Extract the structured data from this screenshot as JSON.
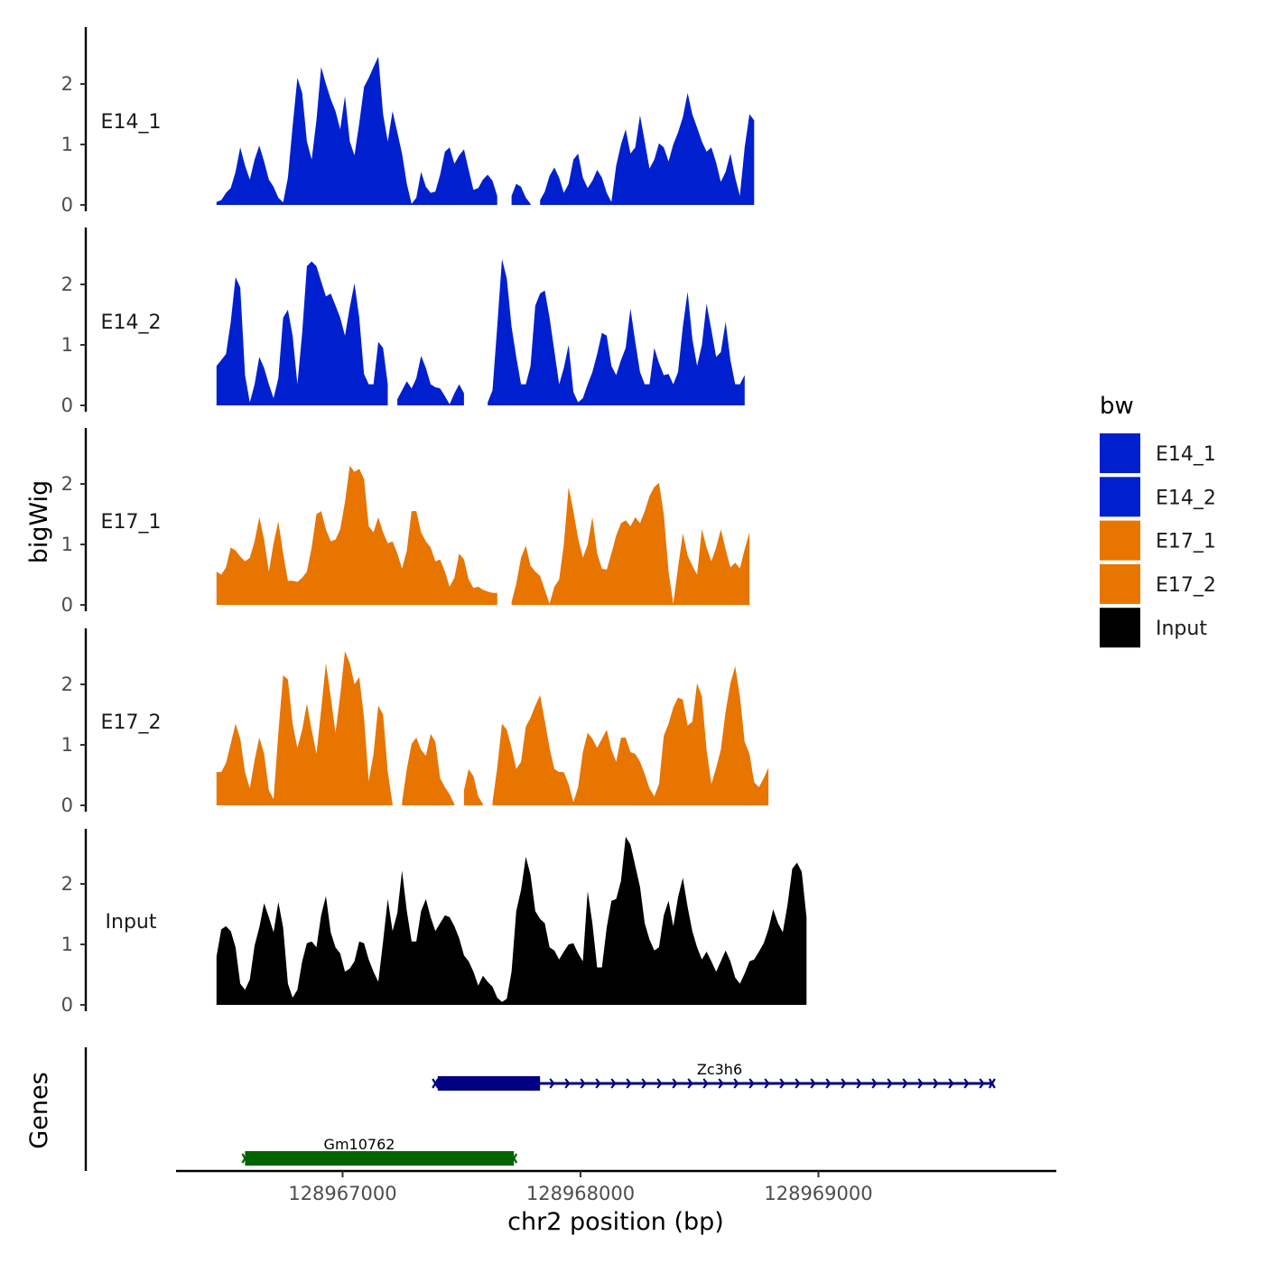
{
  "chart_data": {
    "type": "area",
    "xlabel": "chr2 position (bp)",
    "ylabel": "bigWig",
    "genes_label": "Genes",
    "xlim": [
      128966300,
      128970000
    ],
    "ylim": [
      0,
      2.9
    ],
    "y_ticks": [
      0,
      1,
      2
    ],
    "x_ticks": [
      128967000,
      128968000,
      128969000
    ],
    "x_tick_labels": [
      "128967000",
      "128968000",
      "128969000"
    ],
    "legend": {
      "title": "bw",
      "items": [
        {
          "label": "E14_1",
          "color": "#0020D0"
        },
        {
          "label": "E14_2",
          "color": "#0020D0"
        },
        {
          "label": "E17_1",
          "color": "#E87500"
        },
        {
          "label": "E17_2",
          "color": "#E87500"
        },
        {
          "label": "Input",
          "color": "#000000"
        }
      ]
    },
    "series": [
      {
        "name": "E14_1",
        "color": "#0020D0",
        "x_start": 128966470,
        "x_step": 20,
        "values": [
          0.05,
          0.08,
          0.2,
          0.28,
          0.55,
          0.95,
          0.65,
          0.42,
          0.75,
          0.98,
          0.72,
          0.42,
          0.3,
          0.12,
          0.04,
          0.45,
          1.3,
          2.1,
          1.85,
          1.05,
          0.75,
          1.4,
          2.28,
          2.0,
          1.75,
          1.55,
          1.25,
          1.8,
          1.05,
          0.82,
          1.35,
          1.95,
          2.1,
          2.28,
          2.45,
          1.5,
          1.05,
          1.55,
          1.2,
          0.85,
          0.35,
          0.02,
          0.12,
          0.55,
          0.3,
          0.2,
          0.22,
          0.5,
          0.88,
          0.95,
          0.68,
          0.82,
          0.92,
          0.58,
          0.25,
          0.28,
          0.42,
          0.5,
          0.4,
          0.15,
          null,
          null,
          0.15,
          0.35,
          0.3,
          0.12,
          0.02,
          null,
          0.08,
          0.22,
          0.48,
          0.62,
          0.45,
          0.2,
          0.35,
          0.75,
          0.85,
          0.45,
          0.28,
          0.4,
          0.58,
          0.45,
          0.2,
          0.05,
          0.65,
          1.0,
          1.25,
          0.85,
          0.95,
          1.48,
          1.05,
          0.6,
          0.75,
          1.02,
          0.95,
          0.72,
          1.0,
          1.2,
          1.45,
          1.85,
          1.5,
          1.28,
          1.05,
          0.88,
          0.95,
          0.7,
          0.38,
          0.55,
          0.85,
          0.45,
          0.15,
          0.95,
          1.5,
          1.4
        ]
      },
      {
        "name": "E14_2",
        "color": "#0020D0",
        "x_start": 128966470,
        "x_step": 20,
        "values": [
          0.65,
          0.75,
          0.85,
          1.38,
          2.12,
          1.95,
          0.5,
          0.05,
          0.35,
          0.8,
          0.62,
          0.35,
          0.12,
          0.45,
          1.45,
          1.58,
          1.15,
          0.35,
          1.2,
          2.3,
          2.38,
          2.3,
          2.05,
          1.8,
          1.85,
          1.65,
          1.45,
          1.15,
          1.62,
          2.02,
          1.45,
          0.52,
          0.35,
          0.35,
          1.05,
          0.95,
          0.35,
          null,
          0.1,
          0.25,
          0.4,
          0.28,
          0.45,
          0.82,
          0.62,
          0.35,
          0.3,
          0.28,
          0.15,
          0.02,
          0.2,
          0.35,
          0.2,
          null,
          null,
          null,
          null,
          0.05,
          0.25,
          1.3,
          2.42,
          2.1,
          1.3,
          0.8,
          0.35,
          0.35,
          0.65,
          1.65,
          1.85,
          1.9,
          1.45,
          0.9,
          0.35,
          0.62,
          1.0,
          0.22,
          0.05,
          0.12,
          0.35,
          0.55,
          0.85,
          1.2,
          1.15,
          0.65,
          0.5,
          0.75,
          0.95,
          1.6,
          1.05,
          0.55,
          0.35,
          0.35,
          0.95,
          0.7,
          0.5,
          0.52,
          0.35,
          0.55,
          1.3,
          1.88,
          1.1,
          0.65,
          1.0,
          1.68,
          1.25,
          0.8,
          0.88,
          1.38,
          0.75,
          0.35,
          0.35,
          0.5
        ]
      },
      {
        "name": "E17_1",
        "color": "#E87500",
        "x_start": 128966470,
        "x_step": 20,
        "values": [
          0.55,
          0.5,
          0.62,
          0.95,
          0.9,
          0.8,
          0.72,
          0.78,
          1.05,
          1.45,
          1.08,
          0.55,
          1.02,
          1.38,
          0.85,
          0.4,
          0.4,
          0.38,
          0.45,
          0.55,
          0.95,
          1.5,
          1.55,
          1.25,
          1.05,
          1.08,
          1.25,
          1.7,
          2.3,
          2.2,
          2.25,
          2.08,
          1.3,
          1.2,
          1.45,
          1.2,
          1.02,
          1.05,
          0.85,
          0.6,
          0.9,
          1.55,
          1.55,
          1.2,
          1.05,
          0.95,
          0.72,
          0.75,
          0.55,
          0.3,
          0.45,
          0.85,
          0.75,
          0.42,
          0.28,
          0.3,
          0.25,
          0.22,
          0.2,
          0.2,
          null,
          null,
          0.05,
          0.35,
          0.78,
          0.98,
          0.65,
          0.55,
          0.48,
          0.25,
          0.02,
          0.3,
          0.42,
          1.0,
          1.95,
          1.55,
          1.1,
          0.78,
          1.0,
          1.45,
          0.85,
          0.6,
          0.58,
          0.85,
          1.15,
          1.35,
          1.4,
          1.3,
          1.45,
          1.35,
          1.55,
          1.8,
          1.95,
          2.02,
          1.5,
          0.55,
          0.02,
          0.62,
          1.18,
          0.82,
          0.65,
          0.5,
          1.25,
          0.95,
          0.72,
          0.95,
          1.25,
          0.92,
          0.62,
          0.7,
          0.6,
          0.92,
          1.2
        ]
      },
      {
        "name": "E17_2",
        "color": "#E87500",
        "x_start": 128966470,
        "x_step": 20,
        "values": [
          0.55,
          0.55,
          0.7,
          1.02,
          1.35,
          1.1,
          0.55,
          0.28,
          0.75,
          1.12,
          0.85,
          0.25,
          0.1,
          1.2,
          2.15,
          2.08,
          1.35,
          0.95,
          1.25,
          1.68,
          1.25,
          0.85,
          1.58,
          2.35,
          1.8,
          1.2,
          1.82,
          2.55,
          2.35,
          2.0,
          2.12,
          1.45,
          0.4,
          0.85,
          1.65,
          1.5,
          0.55,
          0.02,
          null,
          0.05,
          0.6,
          1.02,
          1.12,
          0.92,
          0.82,
          1.18,
          1.05,
          0.45,
          0.3,
          0.18,
          0.02,
          null,
          0.25,
          0.6,
          0.48,
          0.15,
          0.02,
          null,
          0.05,
          0.62,
          1.35,
          1.25,
          0.95,
          0.6,
          0.72,
          1.3,
          1.45,
          1.65,
          1.82,
          1.4,
          0.95,
          0.6,
          0.55,
          0.55,
          0.35,
          0.05,
          0.3,
          0.88,
          1.2,
          1.1,
          0.95,
          1.1,
          1.25,
          0.92,
          0.72,
          1.12,
          1.12,
          0.88,
          0.85,
          0.72,
          0.52,
          0.28,
          0.15,
          0.35,
          1.15,
          1.35,
          1.62,
          1.78,
          1.75,
          1.32,
          1.38,
          2.02,
          1.8,
          0.92,
          0.35,
          0.62,
          0.92,
          1.55,
          2.02,
          2.3,
          1.8,
          1.05,
          0.85,
          0.38,
          0.3,
          0.45,
          0.62
        ]
      },
      {
        "name": "Input",
        "color": "#000000",
        "x_start": 128966470,
        "x_step": 20,
        "values": [
          0.8,
          1.25,
          1.3,
          1.22,
          0.95,
          0.35,
          0.25,
          0.42,
          0.98,
          1.28,
          1.68,
          1.45,
          1.2,
          1.7,
          1.28,
          0.35,
          0.12,
          0.25,
          0.72,
          1.02,
          1.05,
          0.95,
          1.48,
          1.8,
          1.2,
          0.95,
          0.85,
          0.55,
          0.6,
          0.72,
          1.05,
          1.02,
          0.75,
          0.55,
          0.38,
          1.05,
          1.75,
          1.22,
          1.52,
          2.22,
          1.55,
          1.05,
          1.05,
          1.55,
          1.75,
          1.45,
          1.22,
          1.35,
          1.48,
          1.45,
          1.3,
          1.1,
          0.82,
          0.72,
          0.55,
          0.32,
          0.48,
          0.38,
          0.3,
          0.12,
          0.05,
          0.1,
          0.55,
          1.55,
          1.9,
          2.45,
          2.15,
          1.55,
          1.42,
          1.35,
          0.95,
          0.9,
          0.75,
          0.88,
          1.0,
          1.02,
          0.85,
          0.72,
          1.88,
          1.35,
          0.62,
          0.62,
          1.28,
          1.72,
          1.75,
          2.05,
          2.78,
          2.65,
          2.3,
          1.95,
          1.35,
          1.08,
          0.9,
          0.95,
          1.48,
          1.72,
          1.3,
          1.78,
          2.1,
          1.62,
          1.22,
          0.95,
          0.75,
          0.88,
          0.72,
          0.55,
          0.72,
          0.9,
          0.72,
          0.45,
          0.35,
          0.52,
          0.72,
          0.75,
          0.88,
          1.02,
          1.25,
          1.58,
          1.35,
          1.2,
          1.65,
          2.25,
          2.35,
          2.2,
          1.45
        ]
      }
    ],
    "genes": [
      {
        "name": "Zc3h6",
        "color": "#000080",
        "strand": "+",
        "start": 128967390,
        "end": 128969730,
        "thick_start": 128967400,
        "thick_end": 128967830,
        "row": 0
      },
      {
        "name": "Gm10762",
        "color": "#006400",
        "strand": "-",
        "start": 128966590,
        "end": 128967720,
        "thick_start": 128966590,
        "thick_end": 128967720,
        "row": 1
      }
    ]
  }
}
